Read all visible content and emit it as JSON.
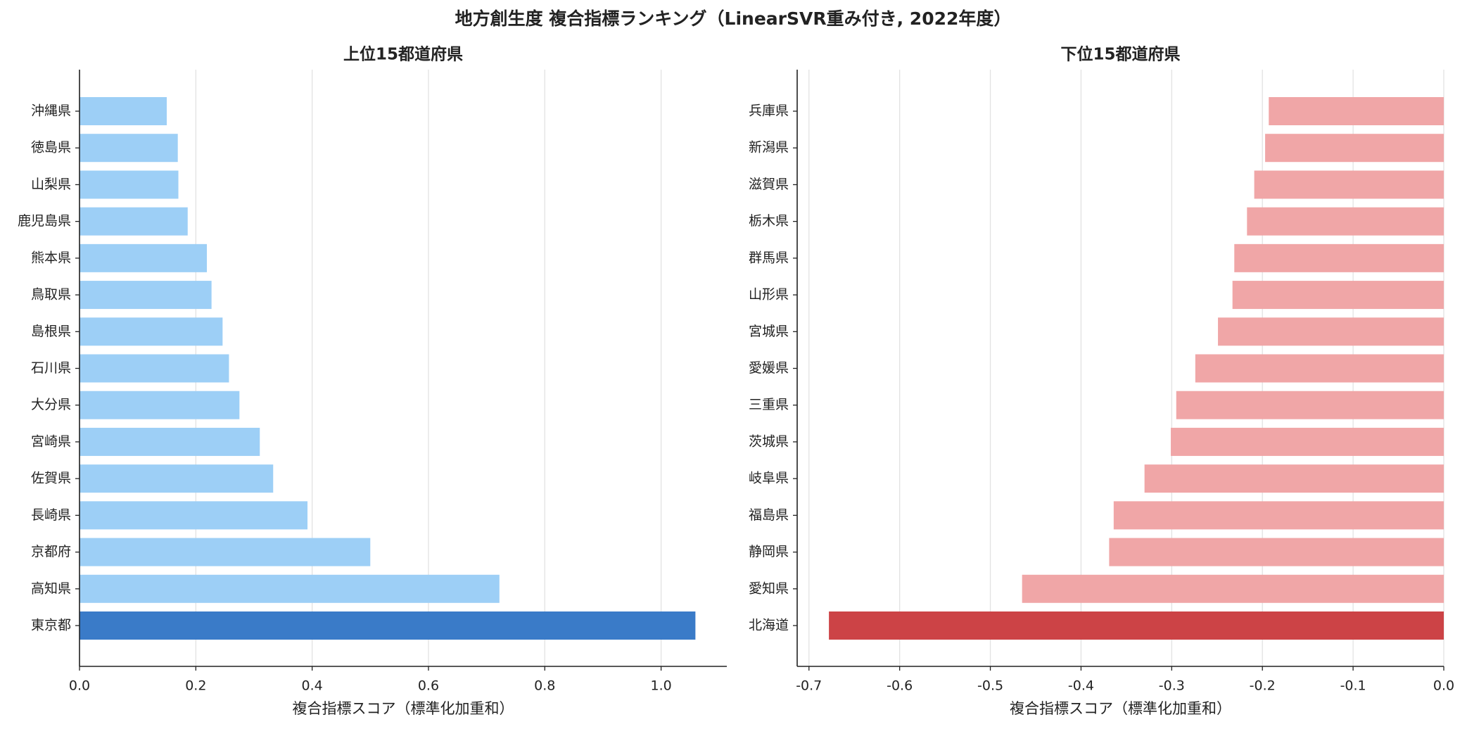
{
  "title": "地方創生度 複合指標ランキング（LinearSVR重み付き, 2022年度）",
  "chart_data": [
    {
      "type": "bar",
      "orientation": "horizontal",
      "title": "上位15都道府県",
      "xlabel": "複合指標スコア（標準化加重和）",
      "categories": [
        "沖縄県",
        "徳島県",
        "山梨県",
        "鹿児島県",
        "熊本県",
        "鳥取県",
        "島根県",
        "石川県",
        "大分県",
        "宮崎県",
        "佐賀県",
        "長崎県",
        "京都府",
        "高知県",
        "東京都"
      ],
      "values": [
        0.15,
        0.169,
        0.17,
        0.186,
        0.219,
        0.227,
        0.246,
        0.257,
        0.275,
        0.31,
        0.333,
        0.392,
        0.5,
        0.722,
        1.059
      ],
      "colors": [
        "#9dcff6",
        "#9dcff6",
        "#9dcff6",
        "#9dcff6",
        "#9dcff6",
        "#9dcff6",
        "#9dcff6",
        "#9dcff6",
        "#9dcff6",
        "#9dcff6",
        "#9dcff6",
        "#9dcff6",
        "#9dcff6",
        "#9dcff6",
        "#3a7bc8"
      ],
      "xlim": [
        0,
        1.113
      ],
      "xticks": [
        {
          "value": 0,
          "label": "0.0"
        },
        0.2,
        0.4,
        0.6,
        0.8,
        {
          "value": 1,
          "label": "1.0"
        }
      ],
      "grid": true
    },
    {
      "type": "bar",
      "orientation": "horizontal",
      "title": "下位15都道府県",
      "xlabel": "複合指標スコア（標準化加重和）",
      "categories": [
        "兵庫県",
        "新潟県",
        "滋賀県",
        "栃木県",
        "群馬県",
        "山形県",
        "宮城県",
        "愛媛県",
        "三重県",
        "茨城県",
        "岐阜県",
        "福島県",
        "静岡県",
        "愛知県",
        "北海道"
      ],
      "values": [
        -0.193,
        -0.197,
        -0.209,
        -0.217,
        -0.231,
        -0.233,
        -0.249,
        -0.274,
        -0.295,
        -0.301,
        -0.33,
        -0.364,
        -0.369,
        -0.465,
        -0.678
      ],
      "colors": [
        "#f0a6a7",
        "#f0a6a7",
        "#f0a6a7",
        "#f0a6a7",
        "#f0a6a7",
        "#f0a6a7",
        "#f0a6a7",
        "#f0a6a7",
        "#f0a6a7",
        "#f0a6a7",
        "#f0a6a7",
        "#f0a6a7",
        "#f0a6a7",
        "#f0a6a7",
        "#cc4346"
      ],
      "xlim": [
        -0.713,
        0
      ],
      "xticks": [
        -0.7,
        -0.6,
        -0.5,
        -0.4,
        -0.3,
        -0.2,
        -0.1,
        {
          "value": 0,
          "label": "0.0"
        }
      ],
      "grid": true
    }
  ]
}
